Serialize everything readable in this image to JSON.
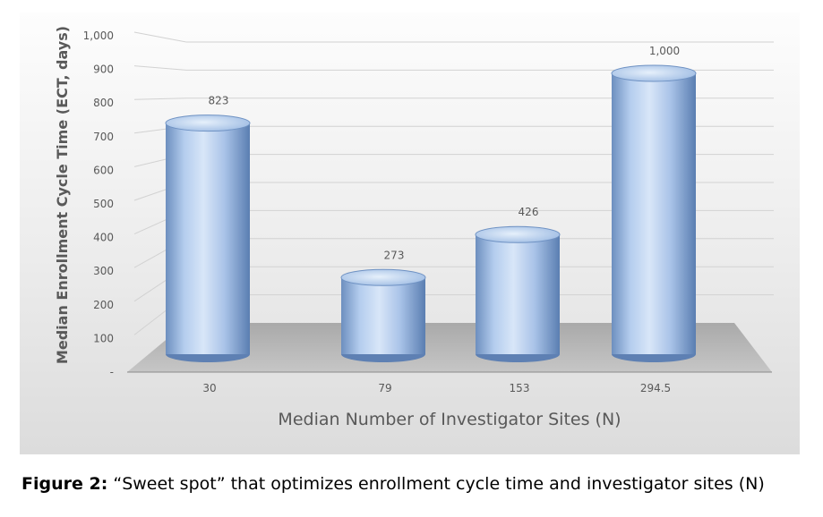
{
  "chart_data": {
    "type": "bar",
    "style": "3d-cylinder",
    "title": "",
    "xlabel": "Median Number of Investigator Sites (N)",
    "ylabel": "Median Enrollment Cycle Time (ECT, days)",
    "categories": [
      "30",
      "79",
      "153",
      "294.5"
    ],
    "values": [
      823,
      273,
      426,
      1000
    ],
    "data_labels": [
      "823",
      "273",
      "426",
      "1,000"
    ],
    "ylim": [
      0,
      1000
    ],
    "yticks": [
      0,
      100,
      200,
      300,
      400,
      500,
      600,
      700,
      800,
      900,
      1000
    ],
    "ytick_labels": [
      "-",
      "100",
      "200",
      "300",
      "400",
      "500",
      "600",
      "700",
      "800",
      "900",
      "1,000"
    ],
    "grid": true,
    "legend": "none",
    "colors": {
      "bar": "#a9c6ea",
      "bar_dark": "#5f84b8",
      "floor": "#b8b8b8",
      "background": "#ebebeb",
      "text": "#595959"
    }
  },
  "caption": {
    "label": "Figure 2:",
    "text": " “Sweet spot” that optimizes enrollment cycle time and investigator sites (N)"
  }
}
